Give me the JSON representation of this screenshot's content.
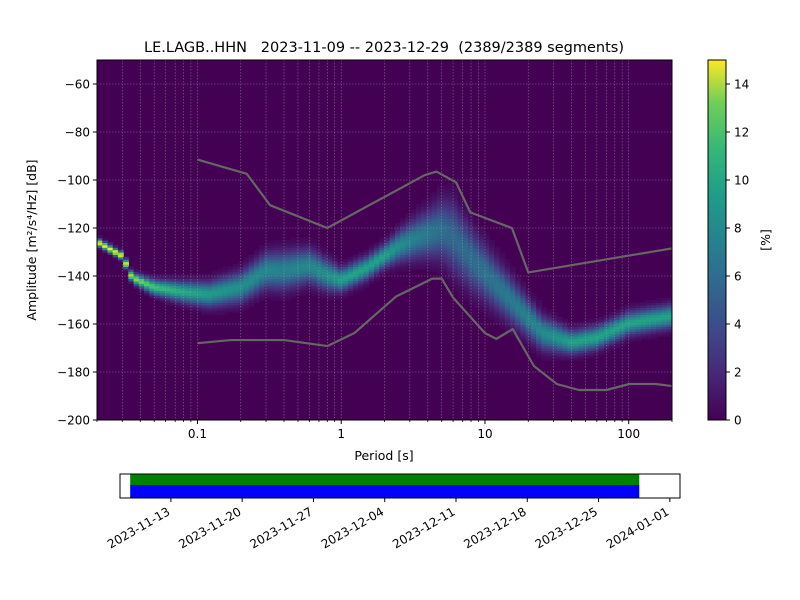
{
  "chart_data": {
    "type": "heatmap",
    "title": "LE.LAGB..HHN   2023-11-09 -- 2023-12-29  (2389/2389 segments)",
    "xlabel": "Period [s]",
    "ylabel": "Amplitude [m²/s⁴/Hz] [dB]",
    "x_scale": "log",
    "xlim": [
      0.02,
      200
    ],
    "ylim": [
      -200,
      -50
    ],
    "x_ticks": [
      0.1,
      1,
      10,
      100
    ],
    "x_tick_labels": [
      "0.1",
      "1",
      "10",
      "100"
    ],
    "y_ticks": [
      -200,
      -180,
      -160,
      -140,
      -120,
      -100,
      -80,
      -60
    ],
    "y_tick_labels": [
      "−200",
      "−180",
      "−160",
      "−140",
      "−120",
      "−100",
      "−80",
      "−60"
    ],
    "grid": true,
    "colorbar": {
      "label": "[%]",
      "range": [
        0,
        15
      ],
      "ticks": [
        0,
        2,
        4,
        6,
        8,
        10,
        12,
        14
      ],
      "tick_labels": [
        "0",
        "2",
        "4",
        "6",
        "8",
        "10",
        "12",
        "14"
      ],
      "colormap": "viridis"
    },
    "mode_curve": {
      "name": "mode",
      "period": [
        0.02,
        0.03,
        0.035,
        0.05,
        0.08,
        0.12,
        0.2,
        0.3,
        0.4,
        0.6,
        0.8,
        1.0,
        1.5,
        2.5,
        3.5,
        5,
        6,
        8,
        12,
        18,
        25,
        40,
        60,
        100,
        200
      ],
      "db": [
        -126,
        -132,
        -141,
        -145,
        -147,
        -148,
        -145,
        -138,
        -138,
        -136,
        -140,
        -142,
        -137,
        -128,
        -124,
        -121,
        -124,
        -133,
        -144,
        -155,
        -164,
        -168,
        -166,
        -160,
        -157
      ]
    },
    "spread": {
      "period": [
        0.02,
        0.03,
        0.05,
        0.1,
        0.2,
        0.4,
        0.8,
        1,
        2,
        4,
        6,
        10,
        20,
        40,
        100,
        200
      ],
      "half_width_db": [
        1,
        1,
        2,
        3,
        4,
        5,
        4,
        3,
        3,
        6,
        9,
        7,
        5,
        3,
        3,
        3
      ]
    },
    "noise_models": [
      {
        "name": "NHNM",
        "period": [
          0.1,
          0.22,
          0.32,
          0.8,
          3.8,
          4.6,
          6.3,
          7.9,
          15.4,
          20,
          354.8
        ],
        "db": [
          -91.5,
          -97.4,
          -110.5,
          -120,
          -98,
          -96.5,
          -101,
          -113.5,
          -120,
          -138.5,
          -126
        ]
      },
      {
        "name": "NLNM",
        "period": [
          0.1,
          0.17,
          0.4,
          0.8,
          1.24,
          2.4,
          4.3,
          5,
          6,
          10,
          12,
          15.6,
          21.9,
          31.6,
          45,
          70,
          101,
          154,
          328
        ],
        "db": [
          -168,
          -166.7,
          -166.7,
          -169.2,
          -163.7,
          -148.6,
          -141.1,
          -141.1,
          -149,
          -163.8,
          -166.2,
          -162.1,
          -177.5,
          -185,
          -187.5,
          -187.5,
          -185,
          -185,
          -187.5
        ]
      }
    ],
    "timeline": {
      "start_date": "2023-11-09",
      "end_date": "2023-12-29",
      "xlim": [
        "2023-11-08",
        "2024-01-02"
      ],
      "tick_dates": [
        "2023-11-13",
        "2023-11-20",
        "2023-11-27",
        "2023-12-04",
        "2023-12-11",
        "2023-12-18",
        "2023-12-25",
        "2024-01-01"
      ],
      "tick_labels": [
        "2023-11-13",
        "2023-11-20",
        "2023-11-27",
        "2023-12-04",
        "2023-12-11",
        "2023-12-18",
        "2023-12-25",
        "2024-01-01"
      ],
      "colors": {
        "data_available": "#008000",
        "data_processed": "#0000ff"
      }
    }
  }
}
